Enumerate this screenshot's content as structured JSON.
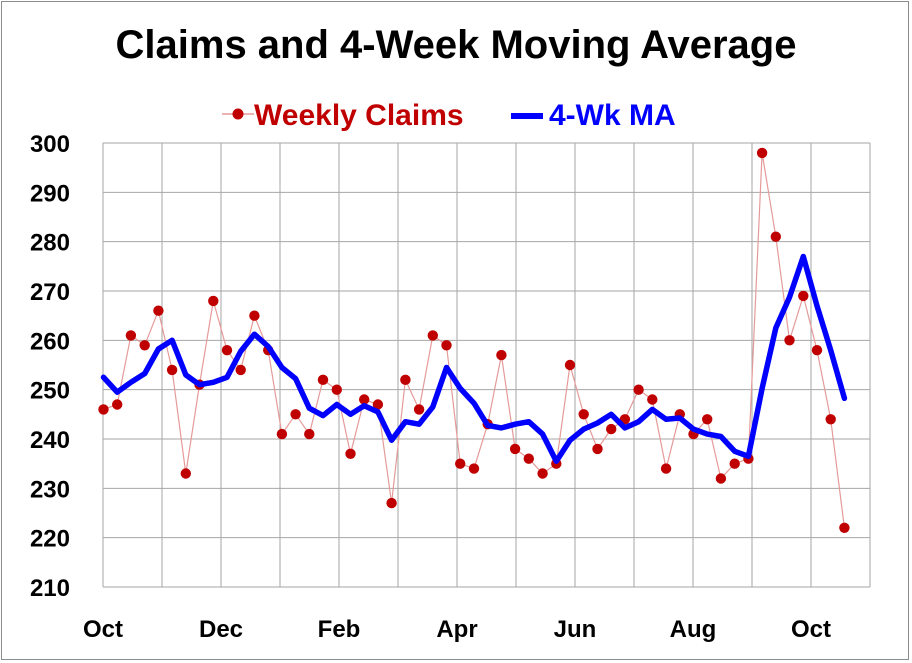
{
  "chart_data": {
    "type": "line",
    "title": "Claims and 4-Week Moving Average",
    "xlabel": "",
    "ylabel": "",
    "ylim": [
      210,
      300
    ],
    "yticks": [
      "300",
      "290",
      "280",
      "270",
      "260",
      "250",
      "240",
      "230",
      "220",
      "210"
    ],
    "xticks": [
      "Oct",
      "Dec",
      "Feb",
      "Apr",
      "Jun",
      "Aug",
      "Oct"
    ],
    "grid": true,
    "legend_position": "top",
    "series": [
      {
        "name": "Weekly Claims",
        "style": "line-with-markers",
        "color": "#c00000",
        "values": [
          246,
          247,
          261,
          259,
          266,
          254,
          233,
          251,
          268,
          258,
          254,
          265,
          258,
          241,
          245,
          241,
          252,
          250,
          237,
          248,
          247,
          227,
          252,
          246,
          261,
          259,
          235,
          234,
          243,
          257,
          238,
          236,
          233,
          235,
          255,
          245,
          238,
          242,
          244,
          250,
          248,
          234,
          245,
          241,
          244,
          232,
          235,
          236,
          298,
          281,
          260,
          269,
          258,
          244,
          222
        ]
      },
      {
        "name": "4-Wk MA",
        "style": "line",
        "color": "#0000ff",
        "values": [
          252.5,
          249.5,
          251.5,
          253.25,
          258.25,
          260,
          253,
          251,
          251.5,
          252.5,
          257.75,
          261.25,
          258.75,
          254.5,
          252.25,
          246.25,
          244.75,
          247,
          245,
          246.75,
          245.5,
          239.75,
          243.5,
          243,
          246.5,
          254.5,
          250.25,
          247.25,
          242.75,
          242.25,
          243,
          243.5,
          241,
          235.5,
          239.75,
          242,
          243.25,
          245,
          242.25,
          243.5,
          246,
          244,
          244.25,
          242,
          241,
          240.5,
          237.5,
          236.5,
          250.25,
          262.5,
          268.75,
          277,
          267,
          258,
          248.25
        ]
      }
    ]
  },
  "colors": {
    "weekly": "#c00000",
    "ma": "#0000ff",
    "grid": "#a6a6a6",
    "thin_line": "#e59a9a"
  }
}
